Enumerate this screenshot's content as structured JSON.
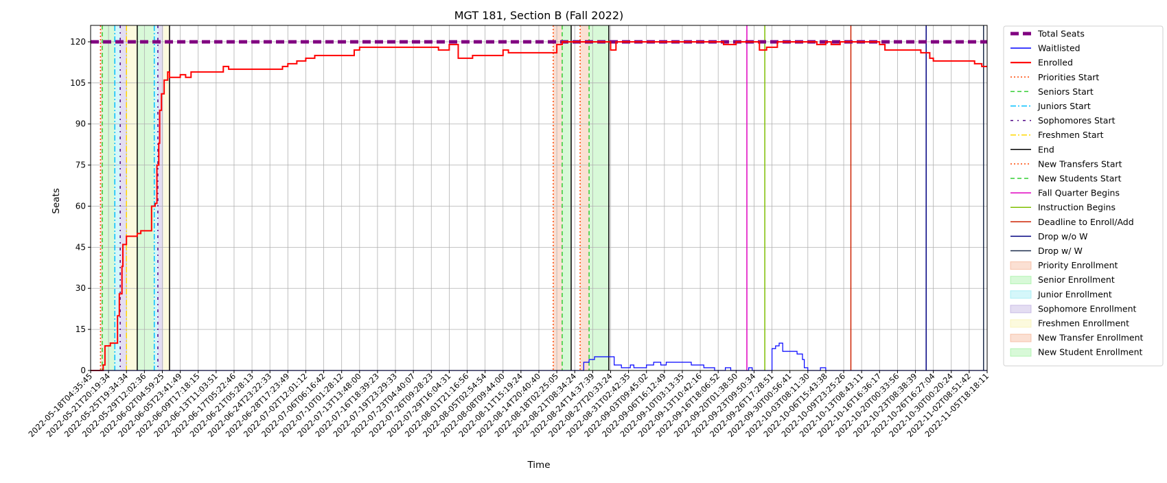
{
  "chart_data": {
    "type": "line",
    "title": "MGT 181, Section B (Fall 2022)",
    "xlabel": "Time",
    "ylabel": "Seats",
    "ylim": [
      0,
      126
    ],
    "yticks": [
      0,
      15,
      30,
      45,
      60,
      75,
      90,
      105,
      120
    ],
    "grid": true,
    "legend_position": "outside right",
    "x_tick_labels": [
      "2022-05-18T04:35:45",
      "2022-05-21T20:19:34",
      "2022-05-25T19:34:34",
      "2022-05-29T12:02:36",
      "2022-06-02T04:59:25",
      "2022-06-05T23:41:49",
      "2022-06-09T17:18:15",
      "2022-06-13T11:03:51",
      "2022-06-17T05:22:46",
      "2022-06-21T05:28:13",
      "2022-06-24T23:22:33",
      "2022-06-28T17:23:49",
      "2022-07-02T12:01:12",
      "2022-07-06T06:16:42",
      "2022-07-10T01:28:12",
      "2022-07-13T13:48:00",
      "2022-07-16T18:39:23",
      "2022-07-19T23:29:33",
      "2022-07-23T04:40:07",
      "2022-07-26T09:28:23",
      "2022-07-29T16:04:31",
      "2022-08-01T21:16:56",
      "2022-08-05T02:54:54",
      "2022-08-08T09:44:00",
      "2022-08-11T15:19:24",
      "2022-08-14T20:40:40",
      "2022-08-18T02:25:05",
      "2022-08-21T08:34:24",
      "2022-08-24T14:37:39",
      "2022-08-27T20:33:24",
      "2022-08-31T02:42:35",
      "2022-09-03T09:45:02",
      "2022-09-06T16:12:49",
      "2022-09-10T03:13:35",
      "2022-09-13T10:42:16",
      "2022-09-16T18:06:52",
      "2022-09-20T01:38:50",
      "2022-09-23T09:50:34",
      "2022-09-26T17:28:51",
      "2022-09-30T00:56:41",
      "2022-10-03T08:11:30",
      "2022-10-06T15:43:38",
      "2022-10-09T23:25:26",
      "2022-10-13T08:43:11",
      "2022-10-16T16:36:17",
      "2022-10-20T00:33:56",
      "2022-10-23T08:38:39",
      "2022-10-26T16:27:04",
      "2022-10-30T00:20:24",
      "2022-11-02T08:51:42",
      "2022-11-05T18:18:11"
    ],
    "x_range": [
      0,
      50
    ],
    "series": [
      {
        "name": "Total Seats",
        "color": "#800080",
        "style": "dashed-thick",
        "points": [
          [
            0,
            120
          ],
          [
            50,
            120
          ]
        ]
      },
      {
        "name": "Enrolled",
        "color": "#ff0000",
        "style": "solid",
        "points": [
          [
            0,
            0
          ],
          [
            0.6,
            0
          ],
          [
            0.7,
            2
          ],
          [
            0.8,
            9
          ],
          [
            1.1,
            10
          ],
          [
            1.4,
            10
          ],
          [
            1.5,
            20
          ],
          [
            1.6,
            28
          ],
          [
            1.7,
            28
          ],
          [
            1.75,
            38
          ],
          [
            1.8,
            46
          ],
          [
            1.9,
            46
          ],
          [
            2.0,
            49
          ],
          [
            2.5,
            49
          ],
          [
            2.6,
            50
          ],
          [
            2.8,
            51
          ],
          [
            3.2,
            51
          ],
          [
            3.4,
            60
          ],
          [
            3.6,
            61
          ],
          [
            3.7,
            75
          ],
          [
            3.8,
            83
          ],
          [
            3.85,
            95
          ],
          [
            3.95,
            101
          ],
          [
            4.1,
            106
          ],
          [
            4.3,
            109
          ],
          [
            4.4,
            107
          ],
          [
            4.5,
            107
          ],
          [
            5.0,
            108
          ],
          [
            5.3,
            107
          ],
          [
            5.6,
            109
          ],
          [
            5.9,
            109
          ],
          [
            7.3,
            109
          ],
          [
            7.4,
            111
          ],
          [
            7.7,
            110
          ],
          [
            10.5,
            110
          ],
          [
            10.7,
            111
          ],
          [
            11.0,
            112
          ],
          [
            11.5,
            113
          ],
          [
            12.0,
            114
          ],
          [
            12.5,
            115
          ],
          [
            14.6,
            115
          ],
          [
            14.7,
            117
          ],
          [
            15.0,
            118
          ],
          [
            18.0,
            118
          ],
          [
            19.4,
            117
          ],
          [
            20.0,
            119
          ],
          [
            20.5,
            114
          ],
          [
            21.0,
            114
          ],
          [
            21.3,
            115
          ],
          [
            22.5,
            115
          ],
          [
            23.0,
            117
          ],
          [
            23.3,
            116
          ],
          [
            25.9,
            116
          ],
          [
            26.0,
            119
          ],
          [
            26.3,
            120
          ],
          [
            28.8,
            120
          ],
          [
            29.0,
            117
          ],
          [
            29.3,
            120
          ],
          [
            34.5,
            120
          ],
          [
            35.3,
            119
          ],
          [
            36.0,
            120
          ],
          [
            37.0,
            120
          ],
          [
            37.3,
            117
          ],
          [
            37.7,
            118
          ],
          [
            38.3,
            120
          ],
          [
            40.0,
            120
          ],
          [
            40.5,
            119
          ],
          [
            41.0,
            120
          ],
          [
            41.3,
            119
          ],
          [
            41.8,
            120
          ],
          [
            44.0,
            119
          ],
          [
            44.3,
            117
          ],
          [
            46.0,
            117
          ],
          [
            46.3,
            116
          ],
          [
            46.8,
            114
          ],
          [
            47.0,
            113
          ],
          [
            49.0,
            113
          ],
          [
            49.3,
            112
          ],
          [
            49.7,
            111
          ],
          [
            50.0,
            111
          ]
        ]
      },
      {
        "name": "Waitlisted",
        "color": "#0000ff",
        "style": "solid",
        "points": [
          [
            0,
            0
          ],
          [
            27.0,
            0
          ],
          [
            27.5,
            3
          ],
          [
            27.8,
            4
          ],
          [
            28.1,
            5
          ],
          [
            29.0,
            5
          ],
          [
            29.2,
            2
          ],
          [
            29.6,
            1
          ],
          [
            30.0,
            1
          ],
          [
            30.1,
            2
          ],
          [
            30.3,
            1
          ],
          [
            31.0,
            2
          ],
          [
            31.4,
            3
          ],
          [
            31.8,
            2
          ],
          [
            32.1,
            3
          ],
          [
            32.6,
            3
          ],
          [
            33.5,
            2
          ],
          [
            33.8,
            2
          ],
          [
            34.2,
            1
          ],
          [
            34.7,
            1
          ],
          [
            34.8,
            0
          ],
          [
            35.3,
            0
          ],
          [
            35.4,
            1
          ],
          [
            35.7,
            0
          ],
          [
            36.6,
            0
          ],
          [
            36.7,
            1
          ],
          [
            36.9,
            0
          ],
          [
            37.9,
            0
          ],
          [
            38.0,
            8
          ],
          [
            38.2,
            9
          ],
          [
            38.4,
            10
          ],
          [
            38.6,
            7
          ],
          [
            39.0,
            7
          ],
          [
            39.4,
            6
          ],
          [
            39.7,
            4
          ],
          [
            39.8,
            1
          ],
          [
            40.0,
            0
          ],
          [
            40.6,
            0
          ],
          [
            40.7,
            1
          ],
          [
            41.0,
            0
          ],
          [
            50.0,
            0
          ]
        ]
      }
    ],
    "vertical_markers": [
      {
        "name": "Priorities Start",
        "x": 0.55,
        "color": "#ff4500",
        "style": "dotted"
      },
      {
        "name": "Seniors Start",
        "x": 0.65,
        "color": "#32cd32",
        "style": "dashed"
      },
      {
        "name": "Juniors Start",
        "x": 1.35,
        "color": "#00bfff",
        "style": "dashdot"
      },
      {
        "name": "Sophomores Start",
        "x": 1.65,
        "color": "#4b0082",
        "style": "dashdot2"
      },
      {
        "name": "Freshmen Start",
        "x": 2.0,
        "color": "#ffd700",
        "style": "dashdot"
      },
      {
        "name": "End",
        "x": 2.6,
        "color": "#000000",
        "style": "solid"
      },
      {
        "name": "Juniors Start",
        "x": 3.55,
        "color": "#00bfff",
        "style": "dashdot"
      },
      {
        "name": "Sophomores Start",
        "x": 3.75,
        "color": "#4b0082",
        "style": "dashdot2"
      },
      {
        "name": "End",
        "x": 4.4,
        "color": "#000000",
        "style": "solid"
      },
      {
        "name": "New Transfers Start",
        "x": 25.8,
        "color": "#ff4500",
        "style": "dotted"
      },
      {
        "name": "New Students Start",
        "x": 26.3,
        "color": "#32cd32",
        "style": "dashed"
      },
      {
        "name": "End",
        "x": 26.8,
        "color": "#000000",
        "style": "solid"
      },
      {
        "name": "New Transfers Start",
        "x": 27.3,
        "color": "#ff4500",
        "style": "dotted"
      },
      {
        "name": "New Students Start",
        "x": 27.8,
        "color": "#32cd32",
        "style": "dashed"
      },
      {
        "name": "End",
        "x": 28.9,
        "color": "#000000",
        "style": "solid"
      },
      {
        "name": "Fall Quarter Begins",
        "x": 36.6,
        "color": "#e000c0",
        "style": "solid"
      },
      {
        "name": "Instruction Begins",
        "x": 37.6,
        "color": "#7fbf00",
        "style": "solid"
      },
      {
        "name": "Deadline to Enroll/Add",
        "x": 42.4,
        "color": "#cc2200",
        "style": "solid"
      },
      {
        "name": "Drop w/o W",
        "x": 46.6,
        "color": "#000080",
        "style": "solid"
      },
      {
        "name": "Drop w/ W",
        "x": 49.8,
        "color": "#1a2a4a",
        "style": "solid"
      }
    ],
    "shaded_regions": [
      {
        "name": "Priority Enrollment",
        "x0": 0.55,
        "x1": 0.65,
        "color": "#f4a582"
      },
      {
        "name": "Senior Enrollment",
        "x0": 0.65,
        "x1": 1.35,
        "color": "#90ee90"
      },
      {
        "name": "Junior Enrollment",
        "x0": 1.35,
        "x1": 1.65,
        "color": "#87e8f0"
      },
      {
        "name": "Sophomore Enrollment",
        "x0": 1.65,
        "x1": 2.0,
        "color": "#b39ddb"
      },
      {
        "name": "Freshmen Enrollment",
        "x0": 2.0,
        "x1": 2.6,
        "color": "#f5f0a0"
      },
      {
        "name": "Senior Enrollment",
        "x0": 2.6,
        "x1": 3.55,
        "color": "#90ee90"
      },
      {
        "name": "Junior Enrollment",
        "x0": 3.55,
        "x1": 3.75,
        "color": "#87e8f0"
      },
      {
        "name": "Sophomore Enrollment",
        "x0": 3.75,
        "x1": 4.05,
        "color": "#b39ddb"
      },
      {
        "name": "Freshmen Enrollment",
        "x0": 4.05,
        "x1": 4.4,
        "color": "#f5f0a0"
      },
      {
        "name": "New Transfer Enrollment",
        "x0": 25.8,
        "x1": 26.3,
        "color": "#f4a582"
      },
      {
        "name": "New Student Enrollment",
        "x0": 26.3,
        "x1": 26.8,
        "color": "#90ee90"
      },
      {
        "name": "New Transfer Enrollment",
        "x0": 27.3,
        "x1": 27.8,
        "color": "#f4a582"
      },
      {
        "name": "New Student Enrollment",
        "x0": 27.8,
        "x1": 28.9,
        "color": "#90ee90"
      }
    ],
    "legend": [
      {
        "label": "Total Seats",
        "kind": "line",
        "color": "#800080",
        "style": "dashed-thick"
      },
      {
        "label": "Waitlisted",
        "kind": "line",
        "color": "#0000ff",
        "style": "solid"
      },
      {
        "label": "Enrolled",
        "kind": "line",
        "color": "#ff0000",
        "style": "solid-thick"
      },
      {
        "label": "Priorities Start",
        "kind": "line",
        "color": "#ff4500",
        "style": "dotted"
      },
      {
        "label": "Seniors Start",
        "kind": "line",
        "color": "#32cd32",
        "style": "dashed"
      },
      {
        "label": "Juniors Start",
        "kind": "line",
        "color": "#00bfff",
        "style": "dashdot"
      },
      {
        "label": "Sophomores Start",
        "kind": "line",
        "color": "#4b0082",
        "style": "dashdot2"
      },
      {
        "label": "Freshmen Start",
        "kind": "line",
        "color": "#ffd700",
        "style": "dashdot"
      },
      {
        "label": "End",
        "kind": "line",
        "color": "#000000",
        "style": "solid"
      },
      {
        "label": "New Transfers Start",
        "kind": "line",
        "color": "#ff4500",
        "style": "dotted"
      },
      {
        "label": "New Students Start",
        "kind": "line",
        "color": "#32cd32",
        "style": "dashed"
      },
      {
        "label": "Fall Quarter Begins",
        "kind": "line",
        "color": "#e000c0",
        "style": "solid"
      },
      {
        "label": "Instruction Begins",
        "kind": "line",
        "color": "#7fbf00",
        "style": "solid"
      },
      {
        "label": "Deadline to Enroll/Add",
        "kind": "line",
        "color": "#cc2200",
        "style": "solid"
      },
      {
        "label": "Drop w/o W",
        "kind": "line",
        "color": "#000080",
        "style": "solid"
      },
      {
        "label": "Drop w/ W",
        "kind": "line",
        "color": "#1a2a4a",
        "style": "solid"
      },
      {
        "label": "Priority Enrollment",
        "kind": "patch",
        "color": "#f4a582"
      },
      {
        "label": "Senior Enrollment",
        "kind": "patch",
        "color": "#90ee90"
      },
      {
        "label": "Junior Enrollment",
        "kind": "patch",
        "color": "#87e8f0"
      },
      {
        "label": "Sophomore Enrollment",
        "kind": "patch",
        "color": "#b39ddb"
      },
      {
        "label": "Freshmen Enrollment",
        "kind": "patch",
        "color": "#f5f0a0"
      },
      {
        "label": "New Transfer Enrollment",
        "kind": "patch",
        "color": "#f4a582"
      },
      {
        "label": "New Student Enrollment",
        "kind": "patch",
        "color": "#90ee90"
      }
    ]
  }
}
